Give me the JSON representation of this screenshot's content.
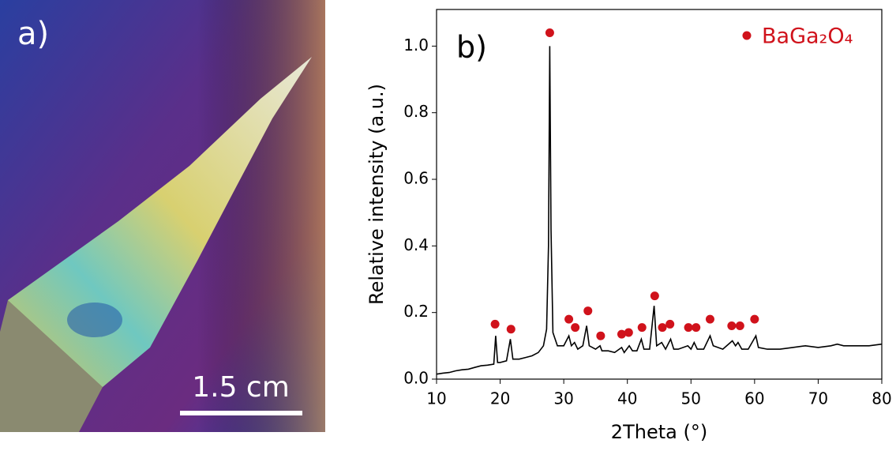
{
  "photo": {
    "panel_label": "a)",
    "scale_bar_label": "1.5 cm"
  },
  "chart_data": {
    "type": "line",
    "panel_label": "b)",
    "xlabel": "2Theta (°)",
    "ylabel": "Relative intensity (a.u.)",
    "xlim": [
      10,
      80
    ],
    "ylim": [
      0,
      1.11
    ],
    "xticks": [
      10,
      20,
      30,
      40,
      50,
      60,
      70,
      80
    ],
    "yticks": [
      {
        "value": 0,
        "label": "0.0"
      },
      0.2,
      0.4,
      0.6,
      0.8,
      {
        "value": 1,
        "label": "1.0"
      }
    ],
    "legend": "upper right",
    "series": [
      {
        "color": "#000000",
        "x": [
          10,
          11,
          12,
          13,
          14,
          15,
          16,
          17,
          18,
          19,
          19.3,
          19.6,
          20,
          21,
          21.6,
          22,
          23,
          24,
          25,
          26,
          26.8,
          27.3,
          27.6,
          27.8,
          28.0,
          28.3,
          29,
          30,
          30.8,
          31.2,
          31.7,
          32.2,
          33,
          33.6,
          34,
          35,
          35.7,
          36,
          37,
          38,
          39.1,
          39.5,
          40.3,
          40.8,
          41.5,
          42.2,
          42.6,
          43.5,
          44.2,
          44.6,
          45.4,
          46,
          46.8,
          47.3,
          48,
          49.5,
          50,
          50.5,
          51,
          52,
          53,
          53.5,
          55,
          56.5,
          57,
          57.4,
          58,
          59,
          60.2,
          60.6,
          62,
          64,
          66,
          68,
          70,
          72,
          73,
          74,
          75,
          76,
          78,
          80
        ],
        "values": [
          0.015,
          0.018,
          0.02,
          0.025,
          0.028,
          0.03,
          0.035,
          0.04,
          0.042,
          0.045,
          0.13,
          0.05,
          0.05,
          0.055,
          0.12,
          0.06,
          0.06,
          0.065,
          0.07,
          0.08,
          0.1,
          0.15,
          0.4,
          1.0,
          0.45,
          0.14,
          0.1,
          0.1,
          0.13,
          0.1,
          0.11,
          0.09,
          0.1,
          0.16,
          0.1,
          0.09,
          0.1,
          0.085,
          0.085,
          0.08,
          0.095,
          0.08,
          0.1,
          0.085,
          0.085,
          0.12,
          0.09,
          0.09,
          0.22,
          0.1,
          0.11,
          0.09,
          0.12,
          0.09,
          0.09,
          0.1,
          0.09,
          0.11,
          0.09,
          0.09,
          0.13,
          0.1,
          0.09,
          0.115,
          0.1,
          0.11,
          0.09,
          0.09,
          0.13,
          0.095,
          0.09,
          0.09,
          0.095,
          0.1,
          0.095,
          0.1,
          0.105,
          0.1,
          0.1,
          0.1,
          0.1,
          0.105
        ]
      },
      {
        "name": "BaGa₂O₄",
        "type": "scatter",
        "color": "#d0121b",
        "x": [
          19.2,
          21.7,
          27.8,
          30.8,
          31.8,
          33.8,
          35.8,
          39.1,
          40.2,
          42.3,
          44.3,
          45.5,
          46.7,
          49.6,
          50.8,
          53,
          56.4,
          57.7,
          60
        ],
        "values": [
          0.165,
          0.15,
          1.04,
          0.18,
          0.155,
          0.205,
          0.13,
          0.135,
          0.14,
          0.155,
          0.25,
          0.155,
          0.165,
          0.155,
          0.155,
          0.18,
          0.16,
          0.16,
          0.18
        ]
      }
    ]
  }
}
